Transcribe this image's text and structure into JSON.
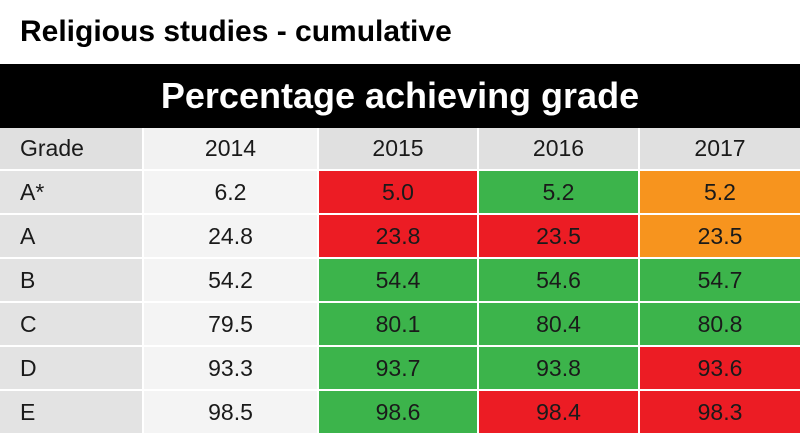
{
  "title": "Religious studies - cumulative",
  "banner": "Percentage achieving grade",
  "chart_data": {
    "type": "table",
    "columns": [
      "Grade",
      "2014",
      "2015",
      "2016",
      "2017"
    ],
    "rows": [
      {
        "grade": "A*",
        "values": [
          "6.2",
          "5.0",
          "5.2",
          "5.2"
        ],
        "colors": [
          "plain",
          "red",
          "green",
          "orange"
        ]
      },
      {
        "grade": "A",
        "values": [
          "24.8",
          "23.8",
          "23.5",
          "23.5"
        ],
        "colors": [
          "plain",
          "red",
          "red",
          "orange"
        ]
      },
      {
        "grade": "B",
        "values": [
          "54.2",
          "54.4",
          "54.6",
          "54.7"
        ],
        "colors": [
          "plain",
          "green",
          "green",
          "green"
        ]
      },
      {
        "grade": "C",
        "values": [
          "79.5",
          "80.1",
          "80.4",
          "80.8"
        ],
        "colors": [
          "plain",
          "green",
          "green",
          "green"
        ]
      },
      {
        "grade": "D",
        "values": [
          "93.3",
          "93.7",
          "93.8",
          "93.6"
        ],
        "colors": [
          "plain",
          "green",
          "green",
          "red"
        ]
      },
      {
        "grade": "E",
        "values": [
          "98.5",
          "98.6",
          "98.4",
          "98.3"
        ],
        "colors": [
          "plain",
          "green",
          "red",
          "red"
        ]
      }
    ]
  },
  "colors": {
    "red": "#ec1c24",
    "green": "#3cb44b",
    "orange": "#f7941e",
    "plain": "#f4f4f4",
    "banner": "#000000"
  }
}
